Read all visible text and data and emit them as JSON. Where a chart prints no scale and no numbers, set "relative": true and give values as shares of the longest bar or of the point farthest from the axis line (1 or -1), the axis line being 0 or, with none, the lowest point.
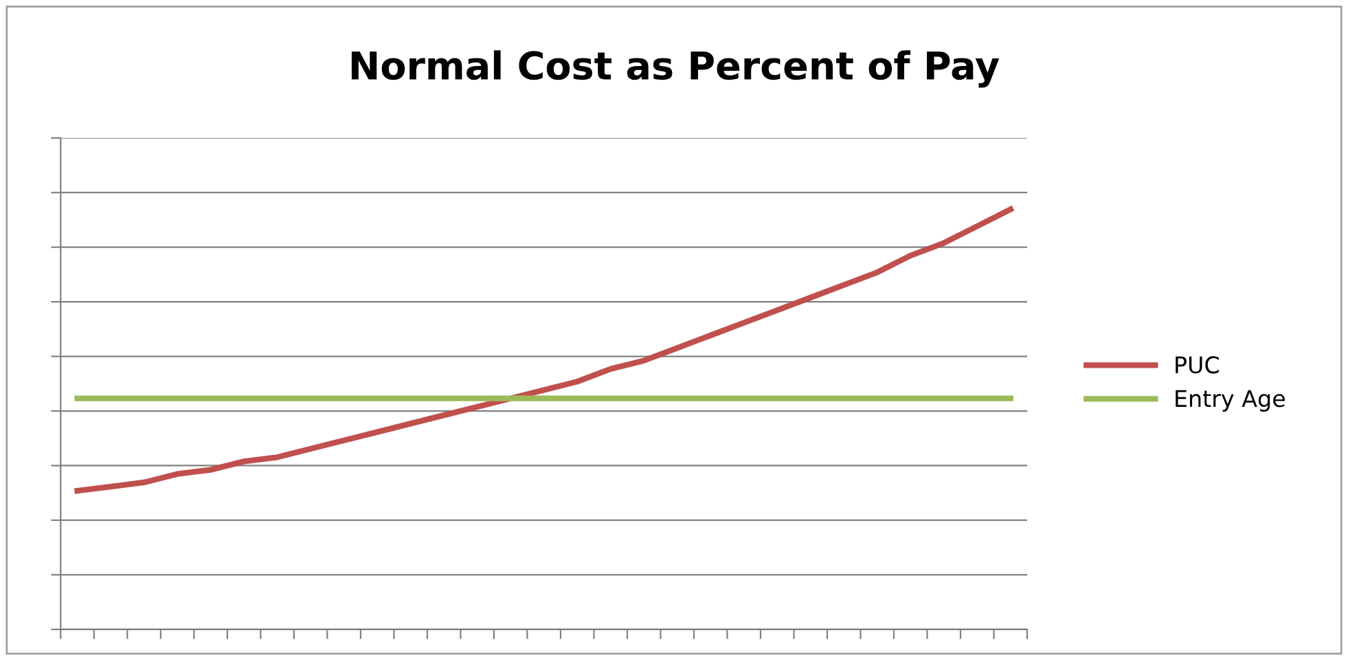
{
  "chart_data": {
    "type": "line",
    "title": "Normal Cost as Percent of Pay",
    "relative": true,
    "categories": [
      null,
      null,
      null,
      null,
      null,
      null,
      null,
      null,
      null,
      null,
      null,
      null,
      null,
      null,
      null,
      null,
      null,
      null,
      null,
      null,
      null,
      null,
      null,
      null,
      null,
      null,
      null,
      null,
      null
    ],
    "series": [
      {
        "name": "PUC",
        "color": "#c0504d",
        "values": [
          0.33,
          0.34,
          0.35,
          0.37,
          0.38,
          0.4,
          0.41,
          0.43,
          0.45,
          0.47,
          0.49,
          0.51,
          0.53,
          0.55,
          0.57,
          0.59,
          0.62,
          0.64,
          0.67,
          0.7,
          0.73,
          0.76,
          0.79,
          0.82,
          0.85,
          0.89,
          0.92,
          0.96,
          1.0
        ]
      },
      {
        "name": "Entry Age",
        "color": "#9bbb59",
        "values": [
          0.55,
          0.55,
          0.55,
          0.55,
          0.55,
          0.55,
          0.55,
          0.55,
          0.55,
          0.55,
          0.55,
          0.55,
          0.55,
          0.55,
          0.55,
          0.55,
          0.55,
          0.55,
          0.55,
          0.55,
          0.55,
          0.55,
          0.55,
          0.55,
          0.55,
          0.55,
          0.55,
          0.55,
          0.55
        ]
      }
    ],
    "grid": "y",
    "legend": "right",
    "marker": "none",
    "line_style": "solid"
  }
}
